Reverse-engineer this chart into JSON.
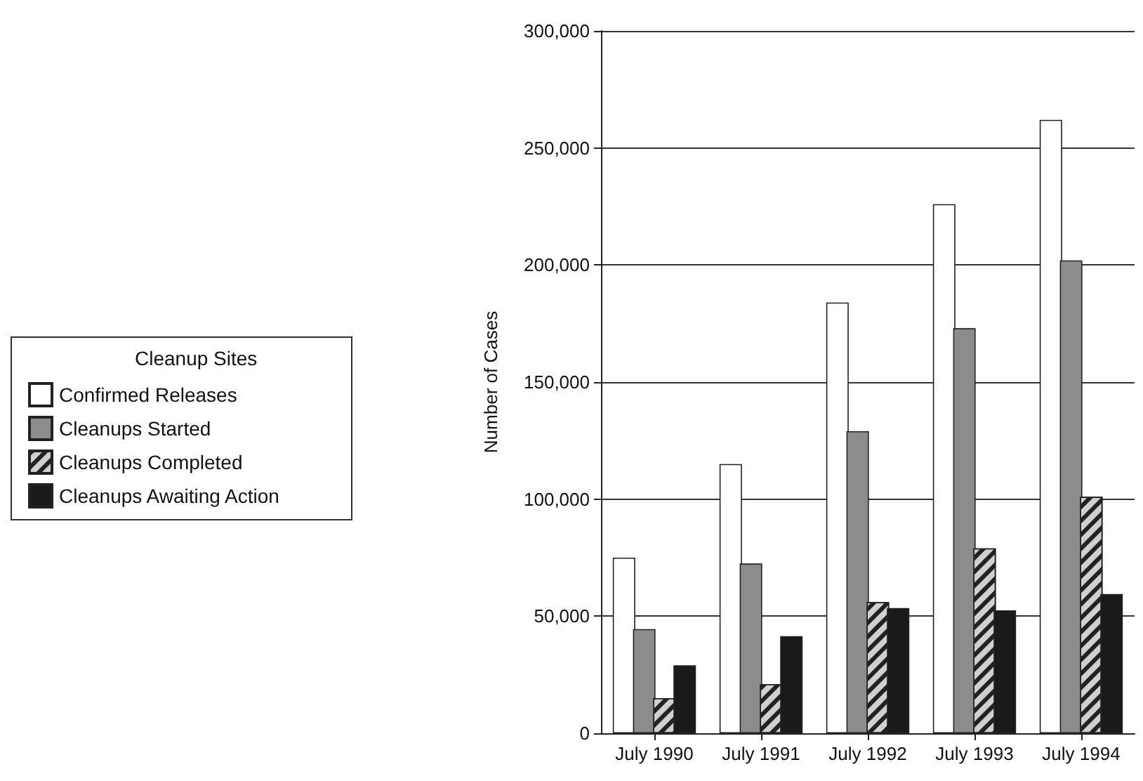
{
  "chart_data": {
    "type": "bar",
    "ylabel": "Number of Cases",
    "legend_title": "Cleanup Sites",
    "categories": [
      "July 1990",
      "July 1991",
      "July 1992",
      "July 1993",
      "July 1994"
    ],
    "series": [
      {
        "name": "Confirmed Releases",
        "color": "#ffffff",
        "values": [
          75000,
          115000,
          184000,
          226000,
          262000
        ]
      },
      {
        "name": "Cleanups Started",
        "color": "#8c8c8c",
        "values": [
          44500,
          72500,
          129000,
          173000,
          202000
        ]
      },
      {
        "name": "Cleanups Completed",
        "color": "#d0d0d0",
        "values": [
          15000,
          21000,
          56000,
          79000,
          101000
        ]
      },
      {
        "name": "Cleanups Awaiting Action",
        "color": "#1a1a1a",
        "values": [
          29000,
          41500,
          53500,
          52500,
          59500
        ]
      }
    ],
    "ylim": [
      0,
      300000
    ],
    "yticks": [
      0,
      {
        "value": 50000,
        "label": "50,000"
      },
      {
        "value": 100000,
        "label": "100,000"
      },
      {
        "value": 150000,
        "label": "150,000"
      },
      {
        "value": 200000,
        "label": "200,000"
      },
      {
        "value": 250000,
        "label": "250,000"
      },
      {
        "value": 300000,
        "label": "300,000"
      }
    ],
    "grid": "y",
    "legend": "left"
  }
}
